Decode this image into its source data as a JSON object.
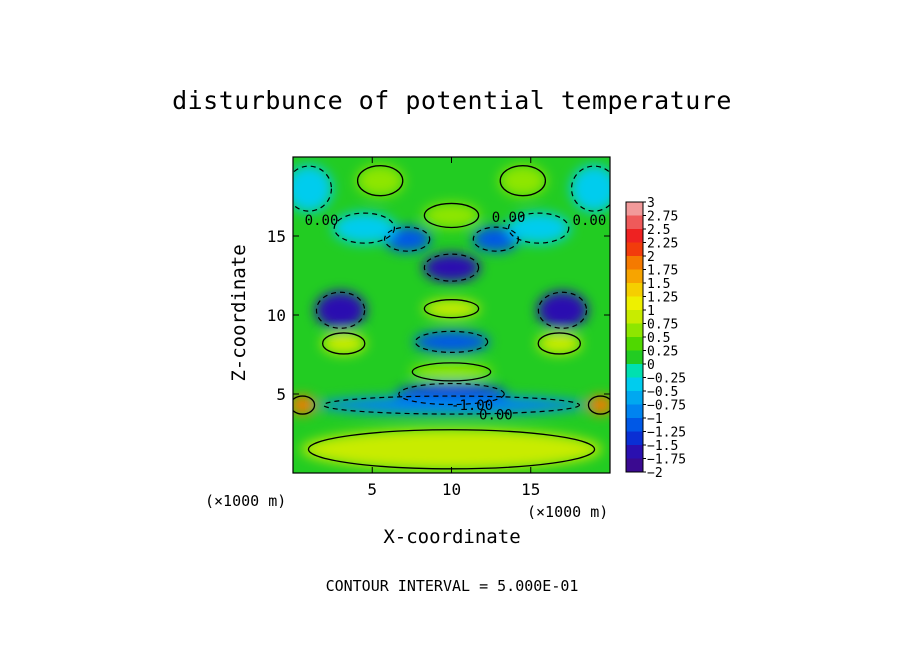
{
  "chart_data": {
    "type": "heatmap",
    "title": "disturbunce of potential temperature",
    "xlabel": "X-coordinate",
    "ylabel": "Z-coordinate",
    "x_unit": "(×1000 m)",
    "z_unit": "(×1000 m)",
    "xlim": [
      0,
      20
    ],
    "ylim": [
      0,
      20
    ],
    "x_ticks": [
      5,
      10,
      15
    ],
    "y_ticks": [
      5,
      10,
      15
    ],
    "contour_interval_text": "CONTOUR INTERVAL = 5.000E-01",
    "contour_labels": [
      {
        "text": "0.00",
        "x": 1.8,
        "z": 16.0
      },
      {
        "text": "0.00",
        "x": 13.6,
        "z": 16.2
      },
      {
        "text": "0.00",
        "x": 18.7,
        "z": 16.0
      },
      {
        "text": "-1.00",
        "x": 11.3,
        "z": 4.3
      },
      {
        "text": "0.00",
        "x": 12.8,
        "z": 3.7
      }
    ],
    "colorbar": {
      "levels": [
        3,
        2.75,
        2.5,
        2.25,
        2,
        1.75,
        1.5,
        1.25,
        1,
        0.75,
        0.5,
        0.25,
        0,
        -0.25,
        -0.5,
        -0.75,
        -1,
        -1.25,
        -1.5,
        -1.75,
        -2
      ],
      "labels": [
        "3",
        "2.75",
        "2.5",
        "2.25",
        "2",
        "1.75",
        "1.5",
        "1.25",
        "1",
        "0.75",
        "0.5",
        "0.25",
        "0",
        "−0.25",
        "−0.5",
        "−0.75",
        "−1",
        "−1.25",
        "−1.5",
        "−1.75",
        "−2"
      ],
      "colors": [
        "#f29a9a",
        "#ef5a5a",
        "#ee2222",
        "#f23c0c",
        "#f57a00",
        "#f7a400",
        "#f5cf00",
        "#eef000",
        "#c8ec00",
        "#8ee600",
        "#4fd800",
        "#22cc22",
        "#00e0b0",
        "#00ccee",
        "#00a8f0",
        "#0084f0",
        "#0058e6",
        "#0a2fd4",
        "#2a10b0",
        "#3a0a90"
      ]
    },
    "regions": [
      {
        "name": "upper-mid-blue",
        "x": 10,
        "z": 13.0,
        "rx": 1.8,
        "rz": 0.9,
        "value": -1.6
      },
      {
        "name": "upper-mid-blue-left",
        "x": 7.2,
        "z": 14.8,
        "rx": 1.5,
        "rz": 0.8,
        "value": -1.1
      },
      {
        "name": "upper-mid-blue-right",
        "x": 12.8,
        "z": 14.8,
        "rx": 1.5,
        "rz": 0.8,
        "value": -1.1
      },
      {
        "name": "upper-left-blue",
        "x": 3.0,
        "z": 10.3,
        "rx": 1.6,
        "rz": 1.2,
        "value": -1.6
      },
      {
        "name": "upper-right-blue",
        "x": 17.0,
        "z": 10.3,
        "rx": 1.6,
        "rz": 1.2,
        "value": -1.6
      },
      {
        "name": "mid-blue",
        "x": 10,
        "z": 8.3,
        "rx": 2.4,
        "rz": 0.7,
        "value": -1.2
      },
      {
        "name": "lower-mid-blue",
        "x": 10,
        "z": 5.0,
        "rx": 3.5,
        "rz": 0.7,
        "value": -1.4
      },
      {
        "name": "low-band-blue",
        "x": 10,
        "z": 4.3,
        "rx": 8.5,
        "rz": 0.6,
        "value": -0.8
      },
      {
        "name": "upper-left-cyan",
        "x": 4.5,
        "z": 15.5,
        "rx": 2.0,
        "rz": 1.0,
        "value": -0.5
      },
      {
        "name": "upper-right-cyan",
        "x": 15.5,
        "z": 15.5,
        "rx": 2.0,
        "rz": 1.0,
        "value": -0.5
      },
      {
        "name": "top-corner-left",
        "x": 1.0,
        "z": 18.0,
        "rx": 1.5,
        "rz": 1.5,
        "value": -0.4
      },
      {
        "name": "top-corner-right",
        "x": 19.0,
        "z": 18.0,
        "rx": 1.5,
        "rz": 1.5,
        "value": -0.4
      },
      {
        "name": "green-center",
        "x": 10,
        "z": 10.4,
        "rx": 1.8,
        "rz": 0.6,
        "value": 0.9
      },
      {
        "name": "green-top",
        "x": 10,
        "z": 16.3,
        "rx": 1.8,
        "rz": 0.8,
        "value": 0.6
      },
      {
        "name": "green-top-left",
        "x": 5.5,
        "z": 18.5,
        "rx": 1.5,
        "rz": 1.0,
        "value": 0.6
      },
      {
        "name": "green-top-right",
        "x": 14.5,
        "z": 18.5,
        "rx": 1.5,
        "rz": 1.0,
        "value": 0.6
      },
      {
        "name": "green-left",
        "x": 3.2,
        "z": 8.2,
        "rx": 1.4,
        "rz": 0.7,
        "value": 0.8
      },
      {
        "name": "green-right",
        "x": 16.8,
        "z": 8.2,
        "rx": 1.4,
        "rz": 0.7,
        "value": 0.8
      },
      {
        "name": "green-mid-low",
        "x": 10,
        "z": 6.4,
        "rx": 2.6,
        "rz": 0.6,
        "value": 0.7
      },
      {
        "name": "yellow-bottom",
        "x": 10,
        "z": 1.5,
        "rx": 9.5,
        "rz": 1.3,
        "value": 0.85
      },
      {
        "name": "hot-left-edge",
        "x": 0.6,
        "z": 4.3,
        "rx": 0.8,
        "rz": 0.6,
        "value": 1.9
      },
      {
        "name": "hot-right-edge",
        "x": 19.4,
        "z": 4.3,
        "rx": 0.8,
        "rz": 0.6,
        "value": 1.9
      }
    ]
  }
}
